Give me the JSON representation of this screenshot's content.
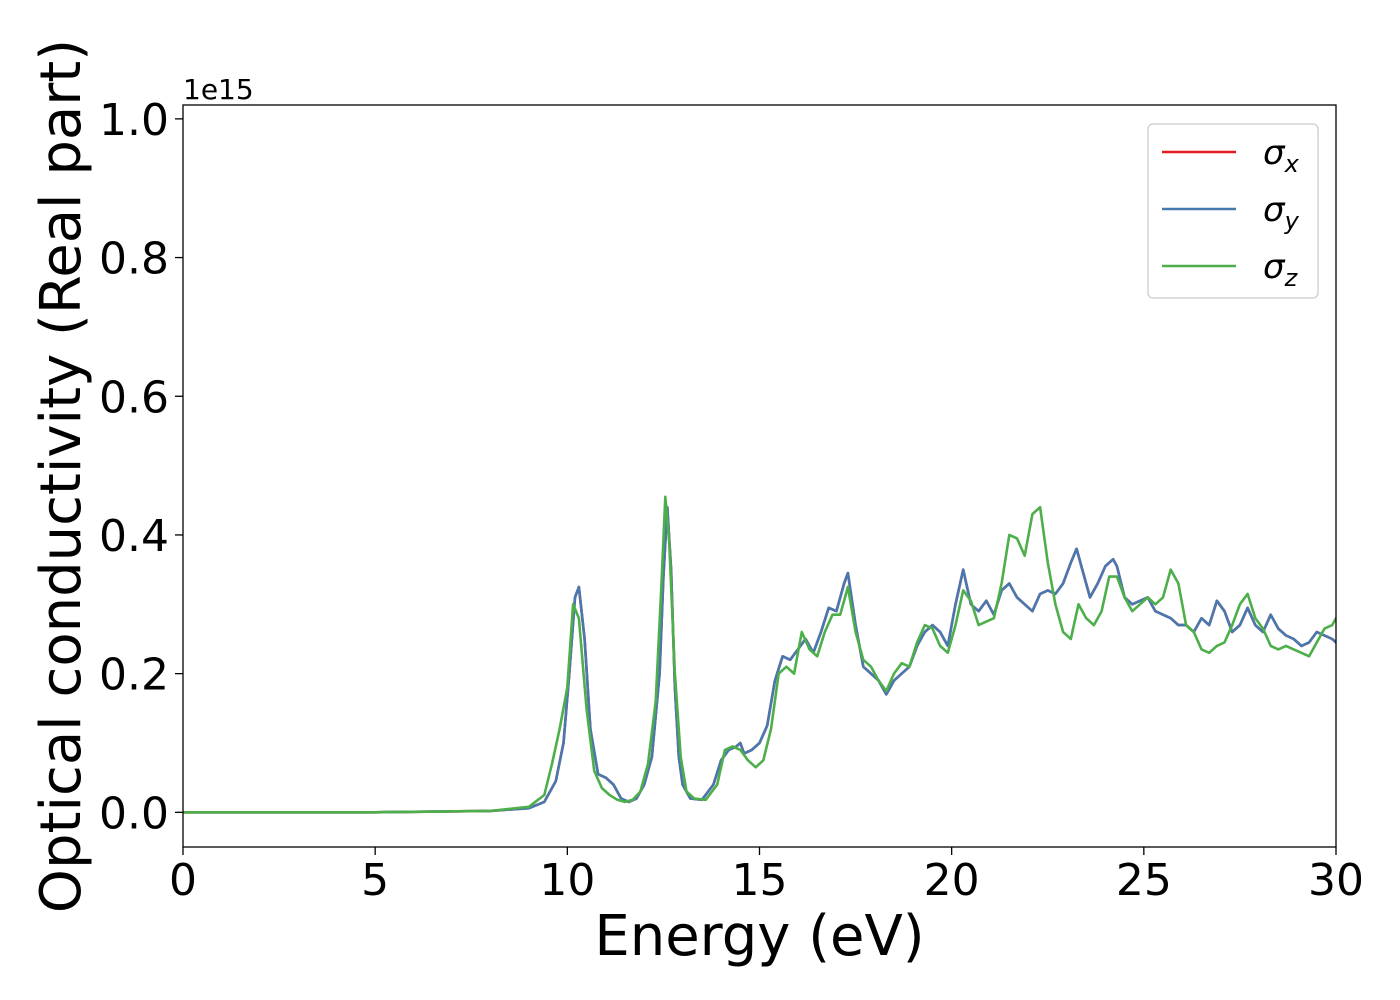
{
  "chart_data": {
    "type": "line",
    "xlabel": "Energy (eV)",
    "ylabel": "Optical conductivity (Real part)",
    "y_offset_label": "1e15",
    "xlim": [
      0,
      30
    ],
    "ylim": [
      -0.05,
      1.02
    ],
    "y_scale_note": "values in units of 1e15",
    "xticks": [
      0,
      5,
      10,
      15,
      20,
      25,
      30
    ],
    "xtick_labels": [
      "0",
      "5",
      "10",
      "15",
      "20",
      "25",
      "30"
    ],
    "yticks": [
      0.0,
      0.2,
      0.4,
      0.6,
      0.8,
      1.0
    ],
    "ytick_labels": [
      "0.0",
      "0.2",
      "0.4",
      "0.6",
      "0.8",
      "1.0"
    ],
    "grid": false,
    "legend_position": "top-right",
    "series": [
      {
        "name": "σx",
        "legend_base": "σ",
        "legend_sub": "x",
        "color": "#e41a1c",
        "x": [
          0,
          5,
          8,
          9,
          9.4,
          9.7,
          9.9,
          10.05,
          10.2,
          10.3,
          10.45,
          10.6,
          10.8,
          11.0,
          11.2,
          11.4,
          11.6,
          11.8,
          12.0,
          12.2,
          12.4,
          12.5,
          12.6,
          12.7,
          12.8,
          12.9,
          13.0,
          13.2,
          13.5,
          13.8,
          14.0,
          14.2,
          14.4,
          14.5,
          14.6,
          14.8,
          15.0,
          15.2,
          15.4,
          15.6,
          15.8,
          16.0,
          16.2,
          16.4,
          16.6,
          16.8,
          17.0,
          17.2,
          17.3,
          17.5,
          17.7,
          17.9,
          18.1,
          18.3,
          18.5,
          18.7,
          18.9,
          19.1,
          19.3,
          19.5,
          19.7,
          19.9,
          20.1,
          20.3,
          20.5,
          20.7,
          20.9,
          21.1,
          21.3,
          21.5,
          21.7,
          21.9,
          22.1,
          22.3,
          22.5,
          22.7,
          22.9,
          23.1,
          23.25,
          23.4,
          23.6,
          23.8,
          24.0,
          24.2,
          24.3,
          24.5,
          24.7,
          24.9,
          25.1,
          25.3,
          25.5,
          25.7,
          25.9,
          26.1,
          26.3,
          26.5,
          26.7,
          26.9,
          27.1,
          27.3,
          27.5,
          27.7,
          27.9,
          28.1,
          28.3,
          28.5,
          28.7,
          28.9,
          29.1,
          29.3,
          29.5,
          29.7,
          29.9,
          30.0
        ],
        "y": [
          0,
          0,
          0.002,
          0.006,
          0.015,
          0.045,
          0.1,
          0.2,
          0.31,
          0.325,
          0.25,
          0.12,
          0.055,
          0.05,
          0.04,
          0.02,
          0.015,
          0.02,
          0.04,
          0.08,
          0.2,
          0.34,
          0.44,
          0.35,
          0.18,
          0.08,
          0.04,
          0.02,
          0.018,
          0.04,
          0.075,
          0.09,
          0.095,
          0.1,
          0.085,
          0.09,
          0.1,
          0.125,
          0.19,
          0.225,
          0.22,
          0.235,
          0.25,
          0.23,
          0.26,
          0.295,
          0.29,
          0.33,
          0.345,
          0.27,
          0.21,
          0.2,
          0.19,
          0.17,
          0.19,
          0.2,
          0.21,
          0.24,
          0.26,
          0.27,
          0.26,
          0.24,
          0.3,
          0.35,
          0.3,
          0.29,
          0.305,
          0.285,
          0.32,
          0.33,
          0.31,
          0.3,
          0.29,
          0.315,
          0.32,
          0.315,
          0.33,
          0.36,
          0.38,
          0.35,
          0.31,
          0.33,
          0.355,
          0.365,
          0.355,
          0.31,
          0.3,
          0.305,
          0.31,
          0.29,
          0.285,
          0.28,
          0.27,
          0.27,
          0.26,
          0.28,
          0.27,
          0.305,
          0.29,
          0.26,
          0.27,
          0.295,
          0.27,
          0.26,
          0.285,
          0.265,
          0.255,
          0.25,
          0.24,
          0.245,
          0.26,
          0.255,
          0.25,
          0.245
        ]
      },
      {
        "name": "σy",
        "legend_base": "σ",
        "legend_sub": "y",
        "color": "#4779b0",
        "x": [
          0,
          5,
          8,
          9,
          9.4,
          9.7,
          9.9,
          10.05,
          10.2,
          10.3,
          10.45,
          10.6,
          10.8,
          11.0,
          11.2,
          11.4,
          11.6,
          11.8,
          12.0,
          12.2,
          12.4,
          12.5,
          12.6,
          12.7,
          12.8,
          12.9,
          13.0,
          13.2,
          13.5,
          13.8,
          14.0,
          14.2,
          14.4,
          14.5,
          14.6,
          14.8,
          15.0,
          15.2,
          15.4,
          15.6,
          15.8,
          16.0,
          16.2,
          16.4,
          16.6,
          16.8,
          17.0,
          17.2,
          17.3,
          17.5,
          17.7,
          17.9,
          18.1,
          18.3,
          18.5,
          18.7,
          18.9,
          19.1,
          19.3,
          19.5,
          19.7,
          19.9,
          20.1,
          20.3,
          20.5,
          20.7,
          20.9,
          21.1,
          21.3,
          21.5,
          21.7,
          21.9,
          22.1,
          22.3,
          22.5,
          22.7,
          22.9,
          23.1,
          23.25,
          23.4,
          23.6,
          23.8,
          24.0,
          24.2,
          24.3,
          24.5,
          24.7,
          24.9,
          25.1,
          25.3,
          25.5,
          25.7,
          25.9,
          26.1,
          26.3,
          26.5,
          26.7,
          26.9,
          27.1,
          27.3,
          27.5,
          27.7,
          27.9,
          28.1,
          28.3,
          28.5,
          28.7,
          28.9,
          29.1,
          29.3,
          29.5,
          29.7,
          29.9,
          30.0
        ],
        "y": [
          0,
          0,
          0.002,
          0.006,
          0.015,
          0.045,
          0.1,
          0.2,
          0.31,
          0.325,
          0.25,
          0.12,
          0.055,
          0.05,
          0.04,
          0.02,
          0.015,
          0.02,
          0.04,
          0.08,
          0.2,
          0.34,
          0.44,
          0.35,
          0.18,
          0.08,
          0.04,
          0.02,
          0.018,
          0.04,
          0.075,
          0.09,
          0.095,
          0.1,
          0.085,
          0.09,
          0.1,
          0.125,
          0.19,
          0.225,
          0.22,
          0.235,
          0.25,
          0.23,
          0.26,
          0.295,
          0.29,
          0.33,
          0.345,
          0.27,
          0.21,
          0.2,
          0.19,
          0.17,
          0.19,
          0.2,
          0.21,
          0.24,
          0.26,
          0.27,
          0.26,
          0.24,
          0.3,
          0.35,
          0.3,
          0.29,
          0.305,
          0.285,
          0.32,
          0.33,
          0.31,
          0.3,
          0.29,
          0.315,
          0.32,
          0.315,
          0.33,
          0.36,
          0.38,
          0.35,
          0.31,
          0.33,
          0.355,
          0.365,
          0.355,
          0.31,
          0.3,
          0.305,
          0.31,
          0.29,
          0.285,
          0.28,
          0.27,
          0.27,
          0.26,
          0.28,
          0.27,
          0.305,
          0.29,
          0.26,
          0.27,
          0.295,
          0.27,
          0.26,
          0.285,
          0.265,
          0.255,
          0.25,
          0.24,
          0.245,
          0.26,
          0.255,
          0.25,
          0.245
        ]
      },
      {
        "name": "σz",
        "legend_base": "σ",
        "legend_sub": "z",
        "color": "#4daf4a",
        "x": [
          0,
          5,
          8,
          9,
          9.4,
          9.6,
          9.8,
          10.0,
          10.15,
          10.3,
          10.5,
          10.7,
          10.9,
          11.1,
          11.3,
          11.5,
          11.7,
          11.9,
          12.1,
          12.3,
          12.45,
          12.55,
          12.65,
          12.8,
          12.95,
          13.1,
          13.3,
          13.6,
          13.9,
          14.1,
          14.3,
          14.5,
          14.7,
          14.9,
          15.1,
          15.3,
          15.5,
          15.7,
          15.9,
          16.1,
          16.3,
          16.5,
          16.7,
          16.9,
          17.1,
          17.3,
          17.5,
          17.7,
          17.9,
          18.1,
          18.3,
          18.5,
          18.7,
          18.9,
          19.1,
          19.3,
          19.5,
          19.7,
          19.9,
          20.1,
          20.3,
          20.5,
          20.7,
          20.9,
          21.1,
          21.3,
          21.5,
          21.7,
          21.9,
          22.1,
          22.3,
          22.5,
          22.7,
          22.9,
          23.1,
          23.3,
          23.5,
          23.7,
          23.9,
          24.1,
          24.3,
          24.5,
          24.7,
          24.9,
          25.1,
          25.3,
          25.5,
          25.7,
          25.9,
          26.1,
          26.3,
          26.5,
          26.7,
          26.9,
          27.1,
          27.3,
          27.5,
          27.7,
          27.9,
          28.1,
          28.3,
          28.5,
          28.7,
          28.9,
          29.1,
          29.3,
          29.5,
          29.7,
          29.9,
          30.0
        ],
        "y": [
          0,
          0,
          0.002,
          0.008,
          0.025,
          0.07,
          0.12,
          0.18,
          0.3,
          0.28,
          0.15,
          0.06,
          0.035,
          0.025,
          0.018,
          0.015,
          0.018,
          0.03,
          0.07,
          0.16,
          0.33,
          0.455,
          0.39,
          0.2,
          0.08,
          0.03,
          0.02,
          0.018,
          0.04,
          0.09,
          0.095,
          0.09,
          0.075,
          0.065,
          0.075,
          0.12,
          0.2,
          0.21,
          0.2,
          0.26,
          0.235,
          0.225,
          0.26,
          0.285,
          0.285,
          0.325,
          0.26,
          0.22,
          0.21,
          0.19,
          0.175,
          0.2,
          0.215,
          0.21,
          0.245,
          0.27,
          0.265,
          0.24,
          0.23,
          0.27,
          0.32,
          0.305,
          0.27,
          0.275,
          0.28,
          0.33,
          0.4,
          0.395,
          0.37,
          0.43,
          0.44,
          0.36,
          0.3,
          0.26,
          0.25,
          0.3,
          0.28,
          0.27,
          0.29,
          0.34,
          0.34,
          0.31,
          0.29,
          0.3,
          0.31,
          0.3,
          0.31,
          0.35,
          0.33,
          0.27,
          0.26,
          0.235,
          0.23,
          0.24,
          0.245,
          0.27,
          0.3,
          0.315,
          0.28,
          0.265,
          0.24,
          0.235,
          0.24,
          0.235,
          0.23,
          0.225,
          0.245,
          0.265,
          0.27,
          0.28
        ]
      }
    ]
  }
}
